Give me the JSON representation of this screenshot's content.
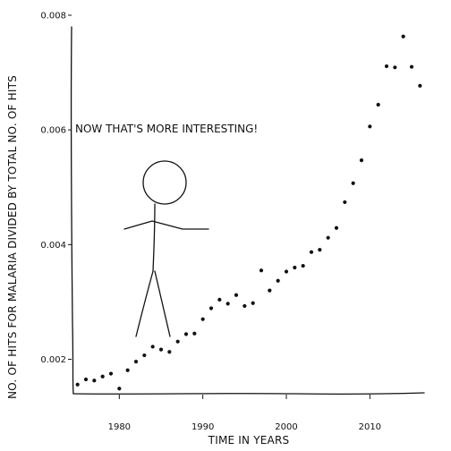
{
  "chart_data": {
    "type": "scatter",
    "xlabel": "TIME IN YEARS",
    "ylabel": "NO. OF HITS FOR MALARIA DIVIDED BY TOTAL NO. OF HITS",
    "annotation": "NOW THAT'S MORE INTERESTING!",
    "xlim": [
      1974.5,
      2016.5
    ],
    "ylim": [
      0.0014,
      0.008
    ],
    "x_ticks": [
      1980,
      1990,
      2000,
      2010
    ],
    "x_tick_labels": [
      "1980",
      "1990",
      "2000",
      "2010"
    ],
    "y_ticks": [
      0.002,
      0.004,
      0.006,
      0.008
    ],
    "y_tick_labels": [
      "0.002",
      "0.004",
      "0.006",
      "0.008"
    ],
    "grid": false,
    "legend": "none",
    "point_color": "#111111",
    "series": [
      {
        "x": [
          1975,
          1976,
          1977,
          1978,
          1979,
          1980,
          1981,
          1982,
          1983,
          1984,
          1985,
          1986,
          1987,
          1988,
          1989,
          1990,
          1991,
          1992,
          1993,
          1994,
          1995,
          1996,
          1997,
          1998,
          1999,
          2000,
          2001,
          2002,
          2003,
          2004,
          2005,
          2006,
          2007,
          2008,
          2009,
          2010,
          2011,
          2012,
          2013,
          2014,
          2015,
          2016
        ],
        "y": [
          0.00156,
          0.00165,
          0.00163,
          0.0017,
          0.00175,
          0.00149,
          0.00181,
          0.00196,
          0.00207,
          0.00222,
          0.00217,
          0.00213,
          0.00231,
          0.00244,
          0.00245,
          0.0027,
          0.00289,
          0.00304,
          0.00297,
          0.00312,
          0.00293,
          0.00298,
          0.00355,
          0.0032,
          0.00337,
          0.00353,
          0.0036,
          0.00363,
          0.00387,
          0.00391,
          0.00412,
          0.00429,
          0.00474,
          0.00507,
          0.00547,
          0.00606,
          0.00644,
          0.00711,
          0.00709,
          0.00763,
          0.0071,
          0.00677
        ]
      }
    ]
  }
}
